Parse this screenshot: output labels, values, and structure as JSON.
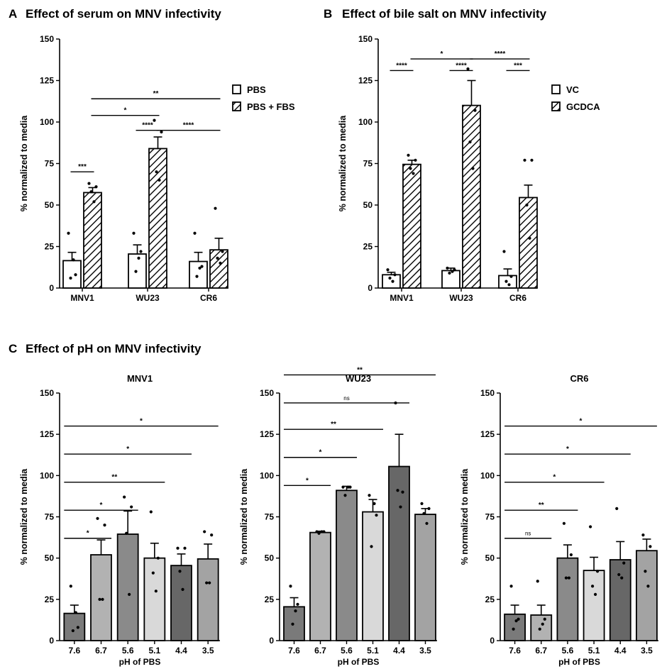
{
  "panels": [
    {
      "letter": "A",
      "title": "Effect of serum on MNV infectivity"
    },
    {
      "letter": "B",
      "title": "Effect of bile salt on MNV infectivity"
    },
    {
      "letter": "C",
      "title": "Effect of pH on MNV infectivity"
    }
  ],
  "colors": {
    "axis": "#000000",
    "bar_plain": "#ffffff",
    "hatch": "#000000",
    "ph_7.6": "#7a7a7a",
    "ph_6.7": "#b2b2b2",
    "ph_5.6": "#8a8a8a",
    "ph_5.1": "#d9d9d9",
    "ph_4.4": "#676767",
    "ph_3.5": "#a3a3a3"
  },
  "chart_data": [
    {
      "id": "A",
      "type": "bar",
      "title": "Effect of serum on MNV infectivity",
      "ylabel": "% normalized to media",
      "xlabel": "",
      "ylim": [
        0,
        150
      ],
      "yticks": [
        0,
        25,
        50,
        75,
        100,
        125,
        150
      ],
      "categories": [
        "MNV1",
        "WU23",
        "CR6"
      ],
      "series": [
        {
          "name": "PBS",
          "style": "plain",
          "values": [
            16.5,
            20.5,
            16.0
          ],
          "errors": [
            5.0,
            5.5,
            5.5
          ],
          "points": [
            [
              33,
              8,
              6,
              17
            ],
            [
              33,
              22,
              10,
              18
            ],
            [
              33,
              13,
              7,
              12
            ]
          ]
        },
        {
          "name": "PBS + FBS",
          "style": "hatch",
          "values": [
            57.5,
            84.0,
            23.0
          ],
          "errors": [
            3.0,
            7.0,
            7.0
          ],
          "points": [
            [
              63,
              61,
              58,
              52
            ],
            [
              101,
              94,
              70,
              65
            ],
            [
              48,
              22,
              18,
              15
            ]
          ]
        }
      ],
      "legend": "right",
      "significance": [
        {
          "label": "***",
          "from": [
            0,
            0
          ],
          "to": [
            0,
            1
          ],
          "y": 70
        },
        {
          "label": "**",
          "from": [
            0,
            1
          ],
          "to": [
            2,
            1
          ],
          "y": 114
        },
        {
          "label": "*",
          "from": [
            0,
            1
          ],
          "to": [
            1,
            1
          ],
          "y": 104
        },
        {
          "label": "****",
          "from": [
            1,
            0
          ],
          "to": [
            1,
            1
          ],
          "y": 95
        },
        {
          "label": "****",
          "from": [
            1,
            1
          ],
          "to": [
            2,
            1
          ],
          "y": 95
        }
      ]
    },
    {
      "id": "B",
      "type": "bar",
      "title": "Effect of bile salt on MNV infectivity",
      "ylabel": "% normalized to media",
      "xlabel": "",
      "ylim": [
        0,
        150
      ],
      "yticks": [
        0,
        25,
        50,
        75,
        100,
        125,
        150
      ],
      "categories": [
        "MNV1",
        "WU23",
        "CR6"
      ],
      "series": [
        {
          "name": "VC",
          "style": "plain",
          "values": [
            8.0,
            10.5,
            7.5
          ],
          "errors": [
            1.5,
            1.5,
            4.0
          ],
          "points": [
            [
              11,
              8,
              6,
              4
            ],
            [
              12,
              11,
              9,
              10
            ],
            [
              22,
              7,
              4,
              2
            ]
          ]
        },
        {
          "name": "GCDCA",
          "style": "hatch",
          "values": [
            74.5,
            110.0,
            54.5
          ],
          "errors": [
            2.5,
            15.0,
            7.5
          ],
          "points": [
            [
              80,
              77,
              72,
              69
            ],
            [
              132,
              107,
              88,
              72
            ],
            [
              77,
              77,
              50,
              30
            ]
          ]
        }
      ],
      "legend": "right",
      "significance": [
        {
          "label": "****",
          "from": [
            0,
            0
          ],
          "to": [
            0,
            1
          ],
          "y": 131
        },
        {
          "label": "*",
          "from": [
            0,
            1
          ],
          "to": [
            1,
            1
          ],
          "y": 138
        },
        {
          "label": "****",
          "from": [
            1,
            0
          ],
          "to": [
            1,
            1
          ],
          "y": 131
        },
        {
          "label": "****",
          "from": [
            1,
            1
          ],
          "to": [
            2,
            1
          ],
          "y": 138
        },
        {
          "label": "***",
          "from": [
            2,
            0
          ],
          "to": [
            2,
            1
          ],
          "y": 131
        }
      ]
    },
    {
      "id": "C-MNV1",
      "type": "bar",
      "title": "MNV1",
      "ylabel": "% normalized to media",
      "xlabel": "pH of PBS",
      "ylim": [
        0,
        150
      ],
      "yticks": [
        0,
        25,
        50,
        75,
        100,
        125,
        150
      ],
      "categories": [
        "7.6",
        "6.7",
        "5.6",
        "5.1",
        "4.4",
        "3.5"
      ],
      "values": [
        16.5,
        52.0,
        64.5,
        50.0,
        45.5,
        49.5
      ],
      "errors": [
        5.0,
        9.0,
        14.0,
        9.0,
        7.0,
        9.0
      ],
      "points": [
        [
          33,
          8,
          6,
          17
        ],
        [
          74,
          70,
          25,
          25
        ],
        [
          87,
          81,
          65,
          28
        ],
        [
          78,
          50,
          41,
          30
        ],
        [
          56,
          56,
          42,
          31
        ],
        [
          66,
          64,
          35,
          35
        ]
      ],
      "significance": [
        {
          "label": "*",
          "from": 0,
          "to": 1,
          "y": 62
        },
        {
          "label": "*",
          "from": 0,
          "to": 2,
          "y": 79
        },
        {
          "label": "**",
          "from": 0,
          "to": 3,
          "y": 96
        },
        {
          "label": "*",
          "from": 0,
          "to": 4,
          "y": 113
        },
        {
          "label": "*",
          "from": 0,
          "to": 5,
          "y": 130
        }
      ]
    },
    {
      "id": "C-WU23",
      "type": "bar",
      "title": "WU23",
      "ylabel": "% normalized to media",
      "xlabel": "pH of PBS",
      "ylim": [
        0,
        150
      ],
      "yticks": [
        0,
        25,
        50,
        75,
        100,
        125,
        150
      ],
      "categories": [
        "7.6",
        "6.7",
        "5.6",
        "5.1",
        "4.4",
        "3.5"
      ],
      "values": [
        20.5,
        65.5,
        91.0,
        78.0,
        105.5,
        76.5
      ],
      "errors": [
        5.5,
        0.8,
        2.5,
        7.5,
        19.5,
        3.5
      ],
      "points": [
        [
          33,
          22,
          10,
          18
        ],
        [
          66,
          66,
          65,
          66
        ],
        [
          93,
          93,
          88,
          93
        ],
        [
          88,
          76,
          57,
          83
        ],
        [
          144,
          90,
          91,
          81
        ],
        [
          83,
          80,
          77,
          71
        ]
      ],
      "significance": [
        {
          "label": "*",
          "from": 0,
          "to": 1,
          "y": 94
        },
        {
          "label": "*",
          "from": 0,
          "to": 2,
          "y": 111
        },
        {
          "label": "**",
          "from": 0,
          "to": 3,
          "y": 128
        },
        {
          "label": "ns",
          "from": 0,
          "to": 4,
          "y": 144
        },
        {
          "label": "**",
          "from": 0,
          "to": 5,
          "y": 161
        }
      ]
    },
    {
      "id": "C-CR6",
      "type": "bar",
      "title": "CR6",
      "ylabel": "% normalized to media",
      "xlabel": "pH of PBS",
      "ylim": [
        0,
        150
      ],
      "yticks": [
        0,
        25,
        50,
        75,
        100,
        125,
        150
      ],
      "categories": [
        "7.6",
        "6.7",
        "5.6",
        "5.1",
        "4.4",
        "3.5"
      ],
      "values": [
        16.0,
        15.5,
        50.0,
        42.5,
        49.0,
        54.5
      ],
      "errors": [
        5.5,
        6.0,
        8.0,
        8.0,
        11.0,
        7.0
      ],
      "points": [
        [
          33,
          13,
          7,
          12
        ],
        [
          36,
          13,
          7,
          10
        ],
        [
          71,
          52,
          38,
          38
        ],
        [
          69,
          42,
          33,
          28
        ],
        [
          80,
          47,
          40,
          38
        ],
        [
          64,
          57,
          42,
          33
        ]
      ],
      "significance": [
        {
          "label": "ns",
          "from": 0,
          "to": 1,
          "y": 62
        },
        {
          "label": "**",
          "from": 0,
          "to": 2,
          "y": 79
        },
        {
          "label": "*",
          "from": 0,
          "to": 3,
          "y": 96
        },
        {
          "label": "*",
          "from": 0,
          "to": 4,
          "y": 113
        },
        {
          "label": "*",
          "from": 0,
          "to": 5,
          "y": 130
        }
      ]
    }
  ]
}
